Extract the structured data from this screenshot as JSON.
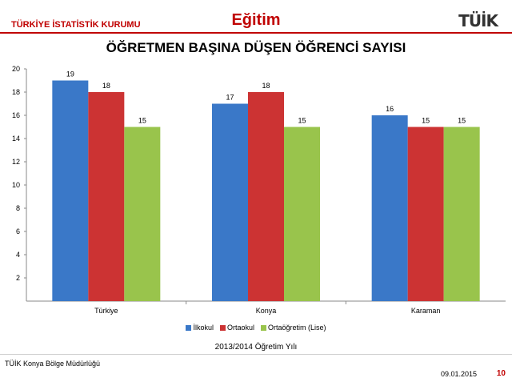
{
  "header": {
    "organization": "TÜRKİYE İSTATİSTİK KURUMU",
    "section": "Eğitim",
    "logo": "TÜİK"
  },
  "footer": {
    "office": "TÜİK Konya Bölge Müdürlüğü",
    "date": "09.01.2015",
    "page": "10"
  },
  "chart_data": {
    "type": "bar",
    "title": "ÖĞRETMEN BAŞINA DÜŞEN ÖĞRENCİ SAYISI",
    "subtitle": "2013/2014 Öğretim Yılı",
    "categories": [
      "Türkiye",
      "Konya",
      "Karaman"
    ],
    "series": [
      {
        "name": "İlkokul",
        "values": [
          19,
          17,
          16
        ],
        "color": "#3a78c8"
      },
      {
        "name": "Ortaokul",
        "values": [
          18,
          18,
          15
        ],
        "color": "#cc3333"
      },
      {
        "name": "Ortaöğretim (Lise)",
        "values": [
          15,
          15,
          15
        ],
        "color": "#99c44c"
      }
    ],
    "ylim": [
      0,
      20
    ],
    "yticks": [
      2,
      4,
      6,
      8,
      10,
      12,
      14,
      16,
      18,
      20
    ],
    "grid": false,
    "legend_position": "bottom"
  }
}
